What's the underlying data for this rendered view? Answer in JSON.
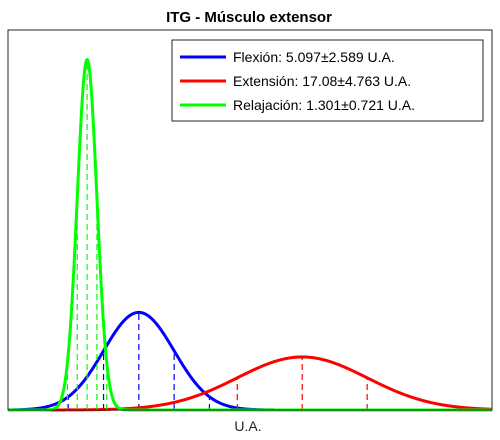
{
  "chart_data": {
    "type": "line",
    "title": "ITG - Músculo extensor",
    "xlabel": "U.A.",
    "ylabel": "",
    "legend_position": "top-right",
    "grid": false,
    "xlim": [
      -4.5,
      31
    ],
    "ylim": [
      0,
      0.6
    ],
    "series": [
      {
        "name": "Flexión",
        "label": "Flexión: 5.097±2.589 U.A.",
        "mean": 5.097,
        "std": 2.589,
        "color": "#0000ff"
      },
      {
        "name": "Extensión",
        "label": "Extensión: 17.08±4.763 U.A.",
        "mean": 17.08,
        "std": 4.763,
        "color": "#ff0000"
      },
      {
        "name": "Relajación",
        "label": "Relajación: 1.301±0.721 U.A.",
        "mean": 1.301,
        "std": 0.721,
        "color": "#00ff00"
      }
    ]
  }
}
